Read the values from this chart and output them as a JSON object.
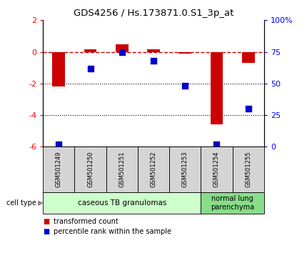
{
  "title": "GDS4256 / Hs.173871.0.S1_3p_at",
  "samples": [
    "GSM501249",
    "GSM501250",
    "GSM501251",
    "GSM501252",
    "GSM501253",
    "GSM501254",
    "GSM501255"
  ],
  "transformed_count": [
    -2.2,
    0.15,
    0.5,
    0.15,
    -0.1,
    -4.6,
    -0.7
  ],
  "percentile_rank": [
    2,
    62,
    75,
    68,
    48,
    2,
    30
  ],
  "ylim_left": [
    -6,
    2
  ],
  "ylim_right": [
    0,
    100
  ],
  "yticks_left": [
    -6,
    -4,
    -2,
    0,
    2
  ],
  "yticks_right": [
    0,
    25,
    50,
    75,
    100
  ],
  "ytick_labels_right": [
    "0",
    "25",
    "50",
    "75",
    "100%"
  ],
  "hline_y": 0,
  "dotted_lines": [
    -2,
    -4
  ],
  "bar_color": "#cc0000",
  "dot_color": "#0000cc",
  "dashed_color": "#cc0000",
  "group1_label": "caseous TB granulomas",
  "group2_label": "normal lung\nparenchyma",
  "group1_color": "#ccffcc",
  "group2_color": "#88dd88",
  "cell_type_label": "cell type",
  "legend_red_label": "transformed count",
  "legend_blue_label": "percentile rank within the sample",
  "bar_width": 0.4,
  "dot_size": 40,
  "sample_label_fontsize": 6,
  "group_label_fontsize": 7.5,
  "legend_fontsize": 7,
  "title_fontsize": 9.5,
  "axis_fontsize": 8
}
